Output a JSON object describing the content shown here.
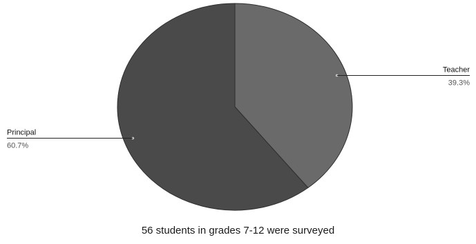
{
  "chart_data": {
    "type": "pie",
    "caption": "56 students in grades 7-12 were surveyed",
    "slices": [
      {
        "label": "Teacher",
        "percent_label": "39.3%",
        "value": 39.3,
        "color": "#6a6a6a"
      },
      {
        "label": "Principal",
        "percent_label": "60.7%",
        "value": 60.7,
        "color": "#4a4a4a"
      }
    ],
    "legend": "callout labels beside slices"
  }
}
